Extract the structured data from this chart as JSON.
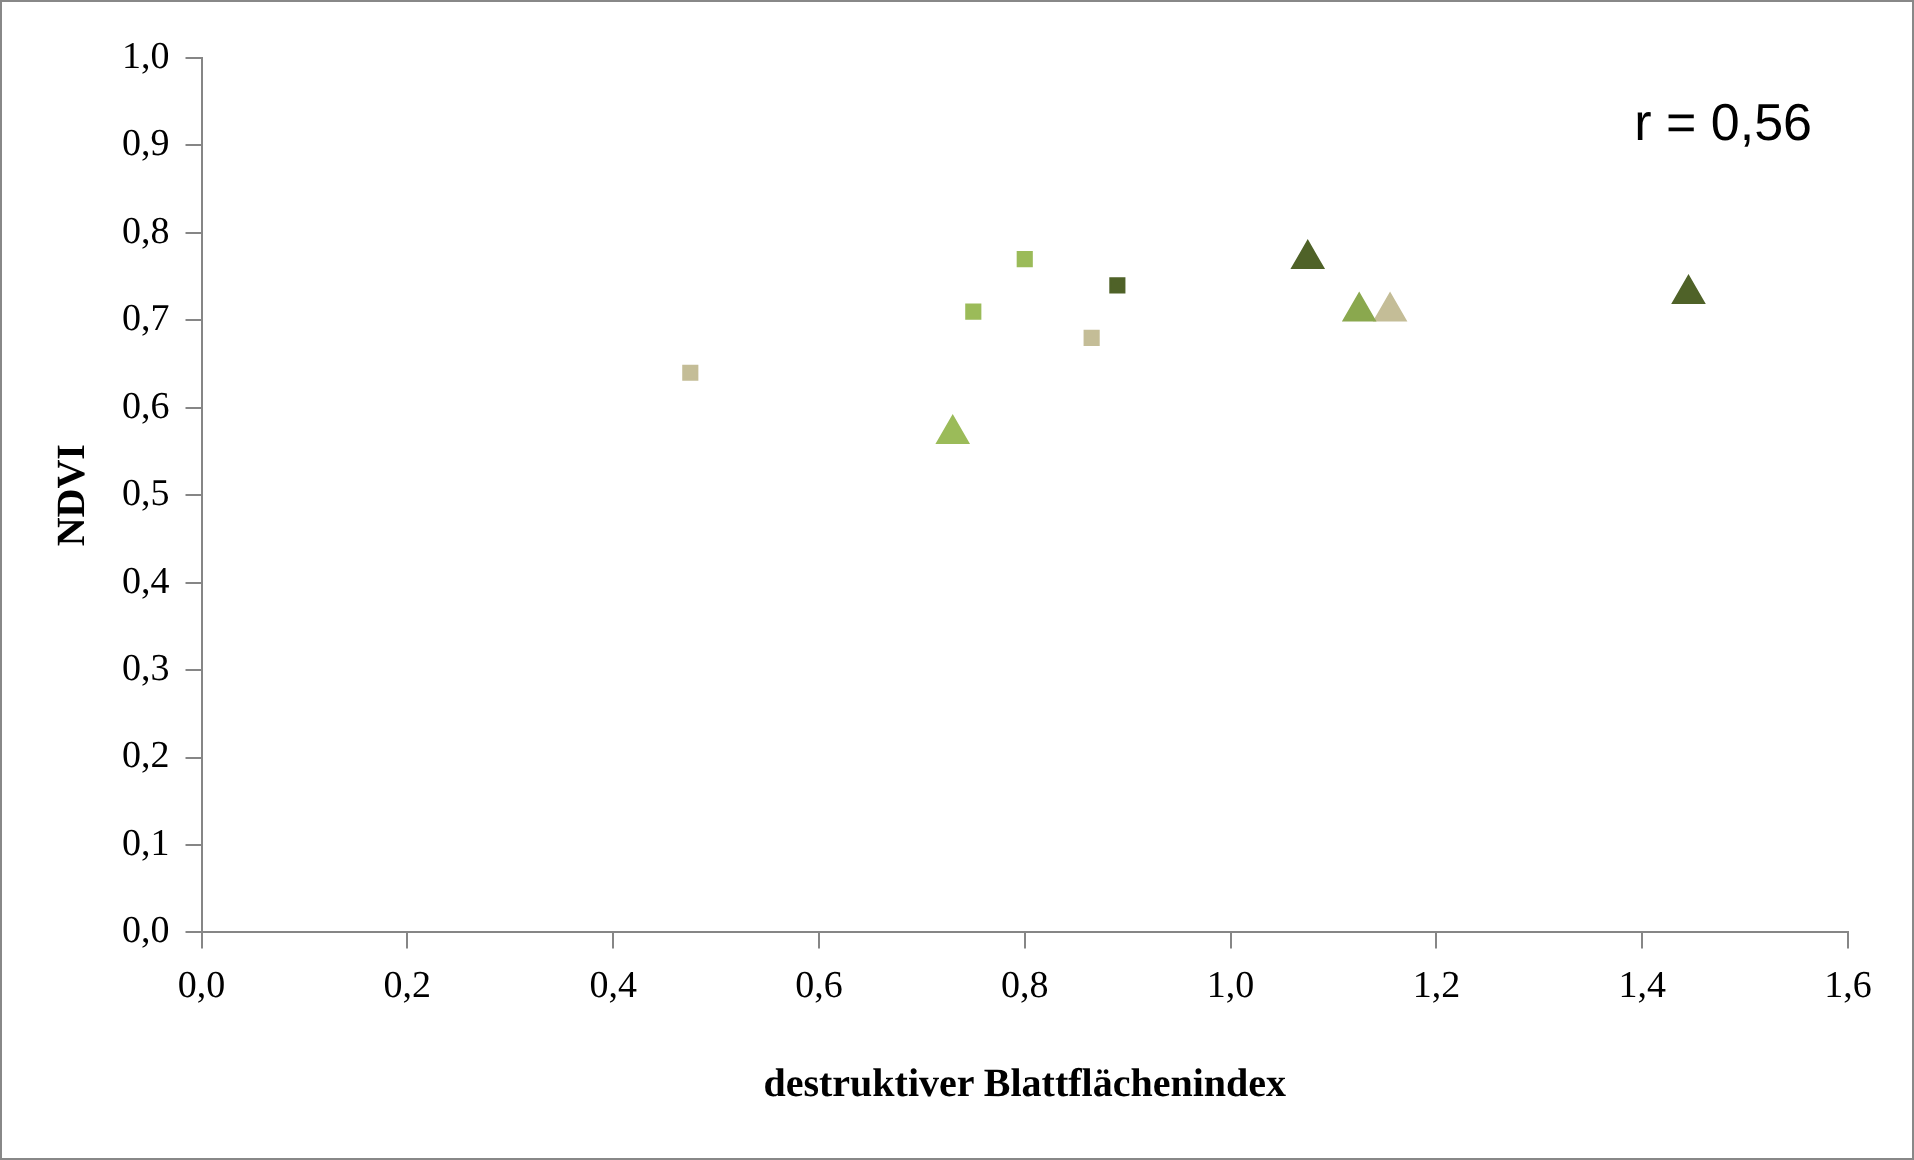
{
  "chart_data": {
    "type": "scatter",
    "xlabel": "destruktiver Blattflächenindex",
    "ylabel": "NDVI",
    "annotations": [
      "r = 0,56"
    ],
    "xlim": [
      0,
      1.6
    ],
    "ylim": [
      0,
      1
    ],
    "xticks": [
      {
        "value": 0,
        "label": "0,0"
      },
      {
        "value": 0.2,
        "label": "0,2"
      },
      {
        "value": 0.4,
        "label": "0,4"
      },
      {
        "value": 0.6,
        "label": "0,6"
      },
      {
        "value": 0.8,
        "label": "0,8"
      },
      {
        "value": 1,
        "label": "1,0"
      },
      {
        "value": 1.2,
        "label": "1,2"
      },
      {
        "value": 1.4,
        "label": "1,4"
      },
      {
        "value": 1.6,
        "label": "1,6"
      }
    ],
    "yticks": [
      {
        "value": 0,
        "label": "0,0"
      },
      {
        "value": 0.1,
        "label": "0,1"
      },
      {
        "value": 0.2,
        "label": "0,2"
      },
      {
        "value": 0.3,
        "label": "0,3"
      },
      {
        "value": 0.4,
        "label": "0,4"
      },
      {
        "value": 0.5,
        "label": "0,5"
      },
      {
        "value": 0.6,
        "label": "0,6"
      },
      {
        "value": 0.7,
        "label": "0,7"
      },
      {
        "value": 0.8,
        "label": "0,8"
      },
      {
        "value": 0.9,
        "label": "0,9"
      },
      {
        "value": 1,
        "label": "1,0"
      }
    ],
    "grid": false,
    "legend": false,
    "series": [
      {
        "color": "#c4bd97",
        "marker": "square",
        "x": [
          0.475,
          0.865
        ],
        "values": [
          0.64,
          0.68
        ]
      },
      {
        "color": "#9bbb59",
        "marker": "square",
        "x": [
          0.75,
          0.8
        ],
        "values": [
          0.71,
          0.77
        ]
      },
      {
        "color": "#4f6228",
        "marker": "square",
        "x": [
          0.89
        ],
        "values": [
          0.74
        ]
      },
      {
        "color": "#9bbb59",
        "marker": "triangle",
        "x": [
          0.73
        ],
        "values": [
          0.57
        ]
      },
      {
        "color": "#8aa84e",
        "marker": "triangle",
        "x": [
          1.125
        ],
        "values": [
          0.71
        ]
      },
      {
        "color": "#c4bd97",
        "marker": "triangle",
        "x": [
          1.155
        ],
        "values": [
          0.71
        ]
      },
      {
        "color": "#4f6228",
        "marker": "triangle",
        "x": [
          1.075,
          1.445
        ],
        "values": [
          0.77,
          0.73
        ]
      }
    ]
  }
}
